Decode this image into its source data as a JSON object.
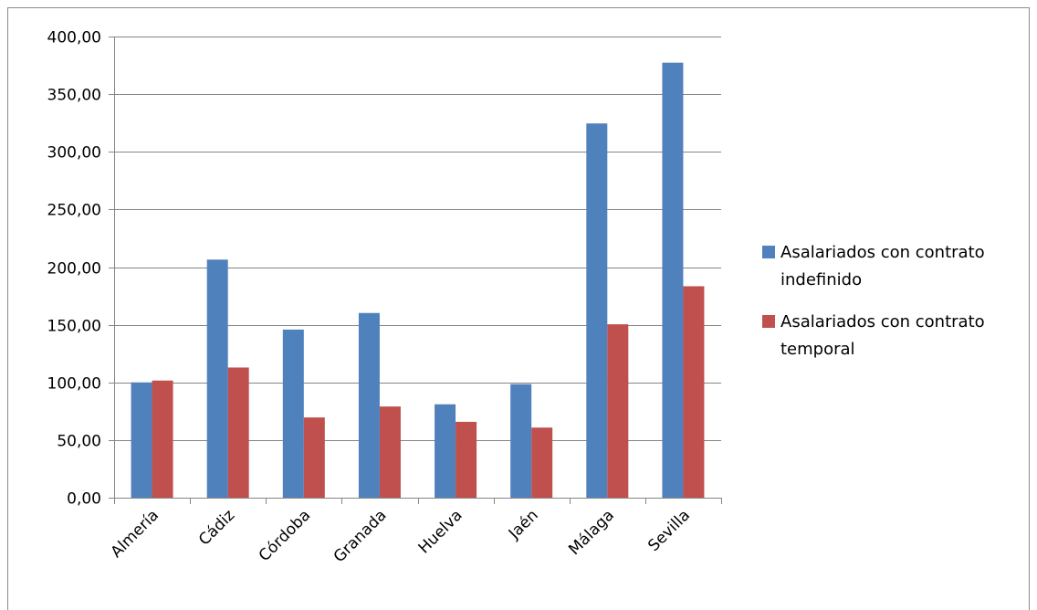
{
  "chart_data": {
    "type": "bar",
    "title": "",
    "xlabel": "",
    "ylabel": "",
    "categories": [
      "Almería",
      "Cádiz",
      "Córdoba",
      "Granada",
      "Huelva",
      "Jaén",
      "Málaga",
      "Sevilla"
    ],
    "series": [
      {
        "name_lines": [
          "Asalariados con contrato",
          "indefinido"
        ],
        "color": "#4f81bd",
        "values": [
          100.0,
          206.5,
          145.8,
          160.2,
          81.0,
          98.5,
          324.6,
          377.3
        ]
      },
      {
        "name_lines": [
          "Asalariados con contrato",
          "temporal"
        ],
        "color": "#c0504d",
        "values": [
          101.6,
          112.9,
          69.6,
          79.1,
          65.8,
          60.8,
          150.4,
          183.4
        ]
      }
    ],
    "ylim": [
      0,
      400
    ],
    "y_ticks": [
      "0,00",
      "50,00",
      "100,00",
      "150,00",
      "200,00",
      "250,00",
      "300,00",
      "350,00",
      "400,00"
    ],
    "y_tick_values": [
      0,
      50,
      100,
      150,
      200,
      250,
      300,
      350,
      400
    ],
    "grid": true,
    "gridline_color": "#868686",
    "legend_position": "right",
    "x_labels_rotation": "-45deg"
  }
}
